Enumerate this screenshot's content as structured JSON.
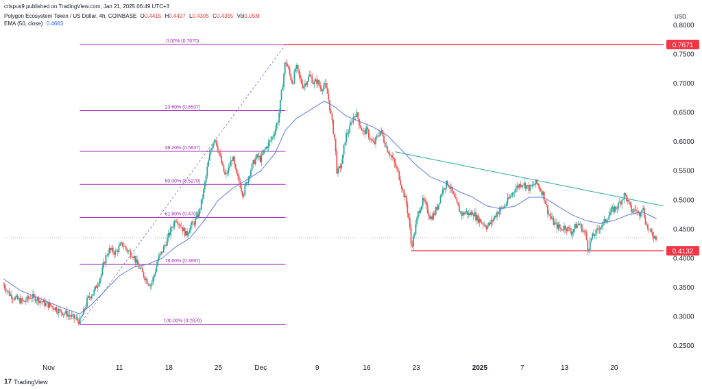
{
  "header": {
    "publisher": "crispus9 published on TradingView.com, Jan 21, 2025 06:49 UTC+3",
    "symbol": "Polygon Ecosystem Token / US Dollar, 4h, COINBASE",
    "ohlc": {
      "o_label": "O",
      "o": "0.4415",
      "h_label": "H",
      "h": "0.4427",
      "l_label": "L",
      "l": "0.4305",
      "c_label": "C",
      "c": "0.4355",
      "vol_label": "Vol",
      "vol": "1.05M"
    },
    "ema_label": "EMA (50, close)",
    "ema_value": "0.4683",
    "currency": "USD"
  },
  "footer": {
    "brand": "TradingView",
    "logo": "tradingview-logo-icon"
  },
  "colors": {
    "up": "#26a69a",
    "down": "#ef5350",
    "ema": "#5b7be0",
    "fib": "#9c27b0",
    "trend": "#26a69a",
    "level": "#f23645",
    "fibdiag": "#7e57c2"
  },
  "chart_data": {
    "type": "candlestick",
    "title": "Polygon Ecosystem Token / US Dollar",
    "timeframe": "4h",
    "yaxis": {
      "ticks": [
        "0.8000",
        "0.7500",
        "0.7000",
        "0.6500",
        "0.6000",
        "0.5500",
        "0.5000",
        "0.4500",
        "0.4000",
        "0.3500",
        "0.3000",
        "0.2500"
      ],
      "tick_values": [
        0.8,
        0.75,
        0.7,
        0.65,
        0.6,
        0.55,
        0.5,
        0.45,
        0.4,
        0.35,
        0.3,
        0.25
      ],
      "range": [
        0.23,
        0.82
      ]
    },
    "xaxis": {
      "ticks": [
        {
          "label": "Nov",
          "day": 0,
          "bold": false
        },
        {
          "label": "11",
          "day": 10,
          "bold": false
        },
        {
          "label": "18",
          "day": 17,
          "bold": false
        },
        {
          "label": "25",
          "day": 24,
          "bold": false
        },
        {
          "label": "Dec",
          "day": 30,
          "bold": false
        },
        {
          "label": "9",
          "day": 38,
          "bold": false
        },
        {
          "label": "16",
          "day": 45,
          "bold": false
        },
        {
          "label": "23",
          "day": 52,
          "bold": false
        },
        {
          "label": "2025",
          "day": 61,
          "bold": true
        },
        {
          "label": "7",
          "day": 67,
          "bold": false
        },
        {
          "label": "13",
          "day": 73,
          "bold": false
        },
        {
          "label": "20",
          "day": 80,
          "bold": false
        }
      ],
      "range_days": [
        -6.5,
        87
      ]
    },
    "price_path": [
      [
        -6.4,
        0.355
      ],
      [
        -5.5,
        0.338
      ],
      [
        -4.5,
        0.33
      ],
      [
        -3.5,
        0.325
      ],
      [
        -2.5,
        0.335
      ],
      [
        -1.5,
        0.33
      ],
      [
        -0.5,
        0.322
      ],
      [
        0.5,
        0.318
      ],
      [
        1.5,
        0.31
      ],
      [
        2.5,
        0.305
      ],
      [
        3.5,
        0.298
      ],
      [
        4.0,
        0.295
      ],
      [
        4.4,
        0.292
      ],
      [
        5.0,
        0.31
      ],
      [
        5.5,
        0.33
      ],
      [
        6.5,
        0.345
      ],
      [
        7.0,
        0.36
      ],
      [
        7.5,
        0.375
      ],
      [
        8.0,
        0.4
      ],
      [
        8.5,
        0.415
      ],
      [
        9.5,
        0.41
      ],
      [
        10,
        0.42
      ],
      [
        10.5,
        0.425
      ],
      [
        11,
        0.415
      ],
      [
        12,
        0.405
      ],
      [
        12.5,
        0.39
      ],
      [
        13,
        0.38
      ],
      [
        13.5,
        0.37
      ],
      [
        14,
        0.36
      ],
      [
        14.5,
        0.355
      ],
      [
        15,
        0.375
      ],
      [
        15.5,
        0.4
      ],
      [
        16,
        0.41
      ],
      [
        16.5,
        0.425
      ],
      [
        17,
        0.44
      ],
      [
        17.5,
        0.455
      ],
      [
        18,
        0.47
      ],
      [
        18.5,
        0.46
      ],
      [
        19,
        0.45
      ],
      [
        19.5,
        0.44
      ],
      [
        20,
        0.455
      ],
      [
        20.5,
        0.46
      ],
      [
        21,
        0.47
      ],
      [
        21.5,
        0.49
      ],
      [
        22,
        0.52
      ],
      [
        22.5,
        0.56
      ],
      [
        23,
        0.59
      ],
      [
        23.5,
        0.61
      ],
      [
        24,
        0.585
      ],
      [
        24.5,
        0.56
      ],
      [
        25,
        0.54
      ],
      [
        25.5,
        0.555
      ],
      [
        26,
        0.575
      ],
      [
        26.5,
        0.545
      ],
      [
        27,
        0.53
      ],
      [
        27.5,
        0.51
      ],
      [
        28,
        0.53
      ],
      [
        28.5,
        0.55
      ],
      [
        29,
        0.565
      ],
      [
        29.5,
        0.575
      ],
      [
        30,
        0.57
      ],
      [
        30.5,
        0.585
      ],
      [
        31,
        0.595
      ],
      [
        31.5,
        0.605
      ],
      [
        32,
        0.62
      ],
      [
        32.5,
        0.64
      ],
      [
        33,
        0.69
      ],
      [
        33.5,
        0.74
      ],
      [
        34,
        0.72
      ],
      [
        34.5,
        0.7
      ],
      [
        35,
        0.73
      ],
      [
        35.5,
        0.71
      ],
      [
        36,
        0.695
      ],
      [
        36.5,
        0.705
      ],
      [
        37,
        0.715
      ],
      [
        37.5,
        0.7
      ],
      [
        38,
        0.705
      ],
      [
        38.5,
        0.69
      ],
      [
        39,
        0.7
      ],
      [
        39.5,
        0.68
      ],
      [
        40,
        0.64
      ],
      [
        40.5,
        0.6
      ],
      [
        40.8,
        0.545
      ],
      [
        41.5,
        0.565
      ],
      [
        42,
        0.61
      ],
      [
        42.5,
        0.62
      ],
      [
        43,
        0.64
      ],
      [
        43.5,
        0.65
      ],
      [
        44,
        0.63
      ],
      [
        44.5,
        0.615
      ],
      [
        45,
        0.62
      ],
      [
        45.5,
        0.605
      ],
      [
        46,
        0.595
      ],
      [
        46.5,
        0.61
      ],
      [
        47,
        0.62
      ],
      [
        47.5,
        0.6
      ],
      [
        48,
        0.585
      ],
      [
        48.5,
        0.575
      ],
      [
        49,
        0.56
      ],
      [
        49.5,
        0.545
      ],
      [
        50,
        0.52
      ],
      [
        50.5,
        0.5
      ],
      [
        51,
        0.465
      ],
      [
        51.3,
        0.42
      ],
      [
        51.7,
        0.44
      ],
      [
        52.3,
        0.48
      ],
      [
        53,
        0.5
      ],
      [
        53.5,
        0.485
      ],
      [
        54,
        0.47
      ],
      [
        54.5,
        0.475
      ],
      [
        55,
        0.49
      ],
      [
        55.5,
        0.51
      ],
      [
        56,
        0.525
      ],
      [
        56.5,
        0.53
      ],
      [
        57,
        0.515
      ],
      [
        57.5,
        0.5
      ],
      [
        58,
        0.485
      ],
      [
        58.5,
        0.475
      ],
      [
        59,
        0.48
      ],
      [
        59.5,
        0.475
      ],
      [
        60,
        0.48
      ],
      [
        60.5,
        0.47
      ],
      [
        61,
        0.465
      ],
      [
        61.5,
        0.46
      ],
      [
        62,
        0.455
      ],
      [
        62.5,
        0.46
      ],
      [
        63,
        0.47
      ],
      [
        63.5,
        0.48
      ],
      [
        64,
        0.485
      ],
      [
        64.5,
        0.49
      ],
      [
        65,
        0.5
      ],
      [
        65.5,
        0.51
      ],
      [
        66,
        0.52
      ],
      [
        66.5,
        0.525
      ],
      [
        67,
        0.53
      ],
      [
        67.5,
        0.525
      ],
      [
        68,
        0.52
      ],
      [
        68.5,
        0.525
      ],
      [
        69,
        0.53
      ],
      [
        69.5,
        0.52
      ],
      [
        70,
        0.51
      ],
      [
        70.5,
        0.485
      ],
      [
        71,
        0.47
      ],
      [
        71.5,
        0.46
      ],
      [
        72,
        0.455
      ],
      [
        72.5,
        0.45
      ],
      [
        73,
        0.455
      ],
      [
        73.5,
        0.45
      ],
      [
        74,
        0.445
      ],
      [
        74.5,
        0.455
      ],
      [
        75,
        0.46
      ],
      [
        75.5,
        0.45
      ],
      [
        76,
        0.44
      ],
      [
        76.3,
        0.415
      ],
      [
        76.8,
        0.435
      ],
      [
        77.5,
        0.445
      ],
      [
        78,
        0.455
      ],
      [
        78.5,
        0.46
      ],
      [
        79,
        0.47
      ],
      [
        79.5,
        0.48
      ],
      [
        80,
        0.485
      ],
      [
        80.5,
        0.49
      ],
      [
        81,
        0.5
      ],
      [
        81.5,
        0.51
      ],
      [
        82,
        0.495
      ],
      [
        82.5,
        0.48
      ],
      [
        83,
        0.485
      ],
      [
        83.5,
        0.475
      ],
      [
        84,
        0.49
      ],
      [
        84.5,
        0.46
      ],
      [
        85,
        0.445
      ],
      [
        85.5,
        0.44
      ],
      [
        86,
        0.4355
      ]
    ],
    "ema_path": [
      [
        -6.4,
        0.365
      ],
      [
        -4,
        0.345
      ],
      [
        -1,
        0.33
      ],
      [
        2,
        0.315
      ],
      [
        4.4,
        0.305
      ],
      [
        6,
        0.32
      ],
      [
        8,
        0.345
      ],
      [
        10,
        0.37
      ],
      [
        12,
        0.385
      ],
      [
        14,
        0.39
      ],
      [
        16,
        0.4
      ],
      [
        18,
        0.42
      ],
      [
        20,
        0.435
      ],
      [
        22,
        0.465
      ],
      [
        24,
        0.5
      ],
      [
        26,
        0.52
      ],
      [
        28,
        0.535
      ],
      [
        30,
        0.55
      ],
      [
        32,
        0.58
      ],
      [
        33.5,
        0.62
      ],
      [
        35,
        0.64
      ],
      [
        37,
        0.655
      ],
      [
        39,
        0.67
      ],
      [
        40.5,
        0.66
      ],
      [
        42,
        0.645
      ],
      [
        44,
        0.635
      ],
      [
        46,
        0.625
      ],
      [
        48,
        0.61
      ],
      [
        50,
        0.585
      ],
      [
        52,
        0.56
      ],
      [
        54,
        0.54
      ],
      [
        56,
        0.53
      ],
      [
        58,
        0.515
      ],
      [
        60,
        0.505
      ],
      [
        62,
        0.49
      ],
      [
        64,
        0.485
      ],
      [
        66,
        0.49
      ],
      [
        68,
        0.505
      ],
      [
        70,
        0.505
      ],
      [
        72,
        0.49
      ],
      [
        74,
        0.475
      ],
      [
        76,
        0.465
      ],
      [
        78,
        0.46
      ],
      [
        80,
        0.465
      ],
      [
        82,
        0.475
      ],
      [
        84,
        0.48
      ],
      [
        86,
        0.4683
      ]
    ],
    "fib_levels": [
      {
        "label": "0.00% (0.7670)",
        "value": 0.767
      },
      {
        "label": "23.60% (0.6537)",
        "value": 0.6537
      },
      {
        "label": "38.20% (0.5837)",
        "value": 0.5837
      },
      {
        "label": "50.00% (0.5270)",
        "value": 0.527
      },
      {
        "label": "61.80% (0.4704)",
        "value": 0.4704
      },
      {
        "label": "78.60% (0.3897)",
        "value": 0.3897
      },
      {
        "label": "100.00% (0.2870)",
        "value": 0.287
      }
    ],
    "fib_range_days": [
      4.4,
      33.5
    ],
    "resistance": {
      "value": 0.7671,
      "label": "0.7671",
      "from_day": 33.5
    },
    "support": {
      "value": 0.4132,
      "label": "0.4132",
      "from_day": 51.3
    },
    "trendline": {
      "points": [
        [
          49,
          0.583
        ],
        [
          87,
          0.49
        ]
      ]
    },
    "current_price": 0.4355
  }
}
